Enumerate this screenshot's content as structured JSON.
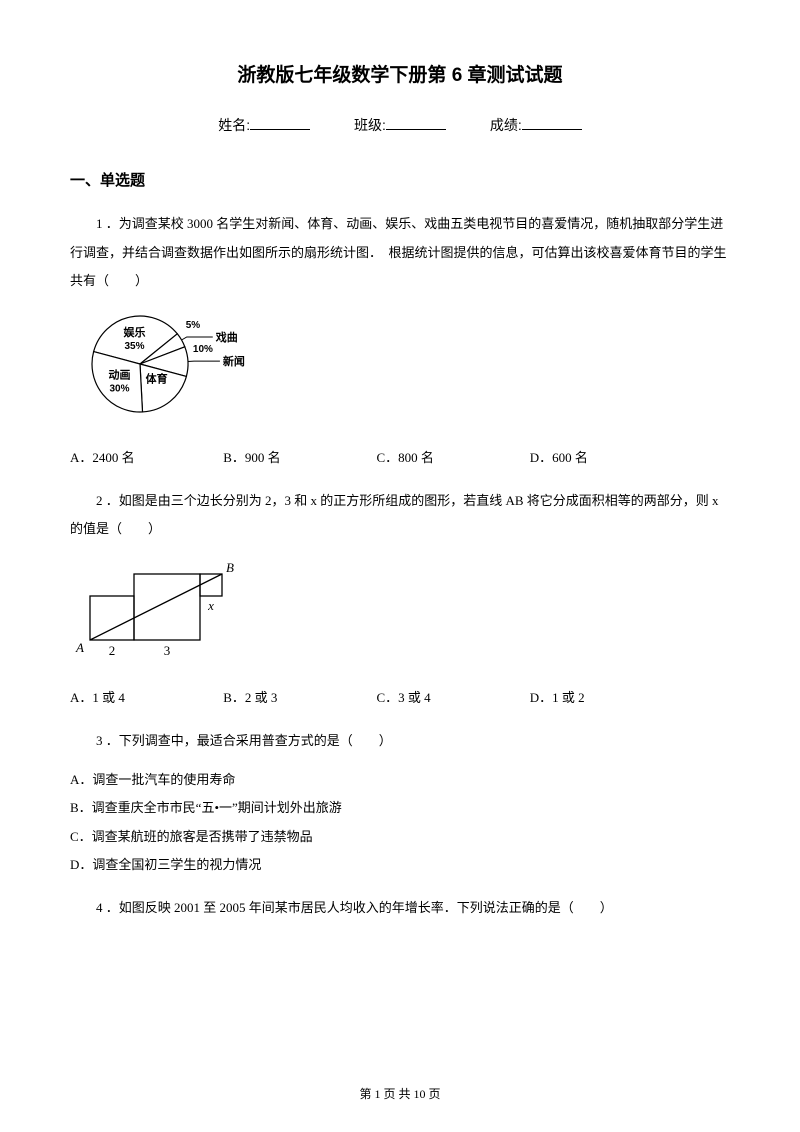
{
  "title": "浙教版七年级数学下册第 6 章测试试题",
  "info": {
    "name_label": "姓名:",
    "class_label": "班级:",
    "score_label": "成绩:"
  },
  "section1_heading": "一、单选题",
  "q1": {
    "text": "1 ．为调查某校 3000 名学生对新闻、体育、动画、娱乐、戏曲五类电视节目的喜爱情况，随机抽取部分学生进行调查，并结合调查数据作出如图所示的扇形统计图．　根据统计图提供的信息，可估算出该校喜爱体育节目的学生共有（　　）",
    "optA": "A．2400 名",
    "optB": "B．900 名",
    "optC": "C．800 名",
    "optD": "D．600 名",
    "pie": {
      "slices": [
        {
          "label": "娱乐",
          "pct": "35%",
          "value": 35
        },
        {
          "label": "戏曲",
          "pct": "5%",
          "value": 5
        },
        {
          "label": "新闻",
          "pct": "10%",
          "value": 10
        },
        {
          "label": "体育",
          "pct": "",
          "value": 20
        },
        {
          "label": "动画",
          "pct": "30%",
          "value": 30
        }
      ],
      "radius": 48,
      "stroke_color": "#000000",
      "fill_color": "#ffffff",
      "label_fontsize": 11
    }
  },
  "q2": {
    "text": "2 ．如图是由三个边长分别为 2，3 和 x 的正方形所组成的图形，若直线 AB 将它分成面积相等的两部分，则 x 的值是（　　）",
    "optA": "A．1 或 4",
    "optB": "B．2 或 3",
    "optC": "C．3 或 4",
    "optD": "D．1 或 2",
    "diagram": {
      "square1": 2,
      "square2": 3,
      "squarex": "x",
      "labelA": "A",
      "labelB": "B",
      "label2": "2",
      "label3": "3",
      "labelx": "x",
      "stroke_color": "#000000",
      "scale": 22
    }
  },
  "q3": {
    "text": "3 ．下列调查中，最适合采用普查方式的是（　　）",
    "optA": "A．调查一批汽车的使用寿命",
    "optB": "B．调查重庆全市市民“五•一”期间计划外出旅游",
    "optC": "C．调查某航班的旅客是否携带了违禁物品",
    "optD": "D．调查全国初三学生的视力情况"
  },
  "q4": {
    "text": "4 ．如图反映 2001 至 2005 年间某市居民人均收入的年增长率．下列说法正确的是（　　）"
  },
  "footer": {
    "prefix": "第 ",
    "page": "1",
    "mid": " 页 共 ",
    "total": "10",
    "suffix": " 页"
  }
}
